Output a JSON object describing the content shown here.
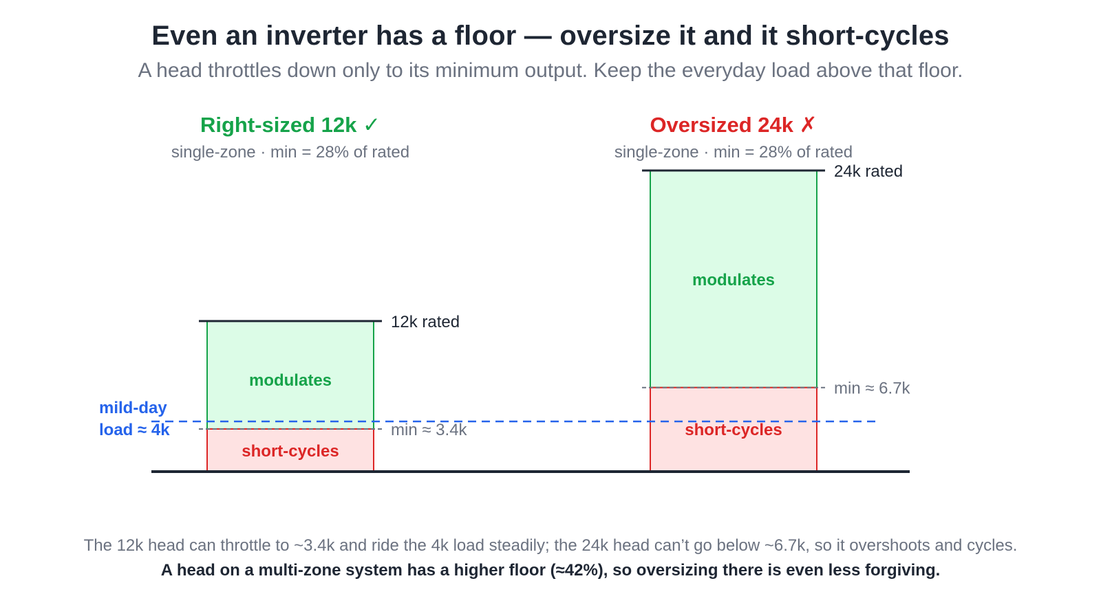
{
  "title": "Even an inverter has a floor — oversize it and it short-cycles",
  "subtitle": "A head throttles down only to its minimum output. Keep the everyday load above that floor.",
  "colors": {
    "good": "#16a34a",
    "bad": "#dc2626",
    "load": "#2563eb",
    "modulate_fill": "#dcfce7",
    "cycle_fill": "#fee2e2",
    "dark": "#1e2633",
    "muted": "#6b7280"
  },
  "load_line": {
    "label_line1": "mild-day",
    "label_line2": "load ≈ 4k",
    "value": 4
  },
  "units": [
    {
      "heading": "Right-sized 12k ✓",
      "caption": "single-zone · min = 28% of rated",
      "rated": 12,
      "min": 3.4,
      "rated_label": "12k rated",
      "min_label": "min ≈ 3.4k",
      "modulate_label": "modulates",
      "cycle_label": "short-cycles",
      "verdict": "good"
    },
    {
      "heading": "Oversized 24k ✗",
      "caption": "single-zone · min = 28% of rated",
      "rated": 24,
      "min": 6.7,
      "rated_label": "24k rated",
      "min_label": "min ≈ 6.7k",
      "modulate_label": "modulates",
      "cycle_label": "short-cycles",
      "verdict": "bad"
    }
  ],
  "footer": {
    "note": "The 12k head can throttle to ~3.4k and ride the 4k load steadily; the 24k head can’t go below ~6.7k, so it overshoots and cycles.",
    "emphasis": "A head on a multi-zone system has a higher floor (≈42%), so oversizing there is even less forgiving."
  }
}
